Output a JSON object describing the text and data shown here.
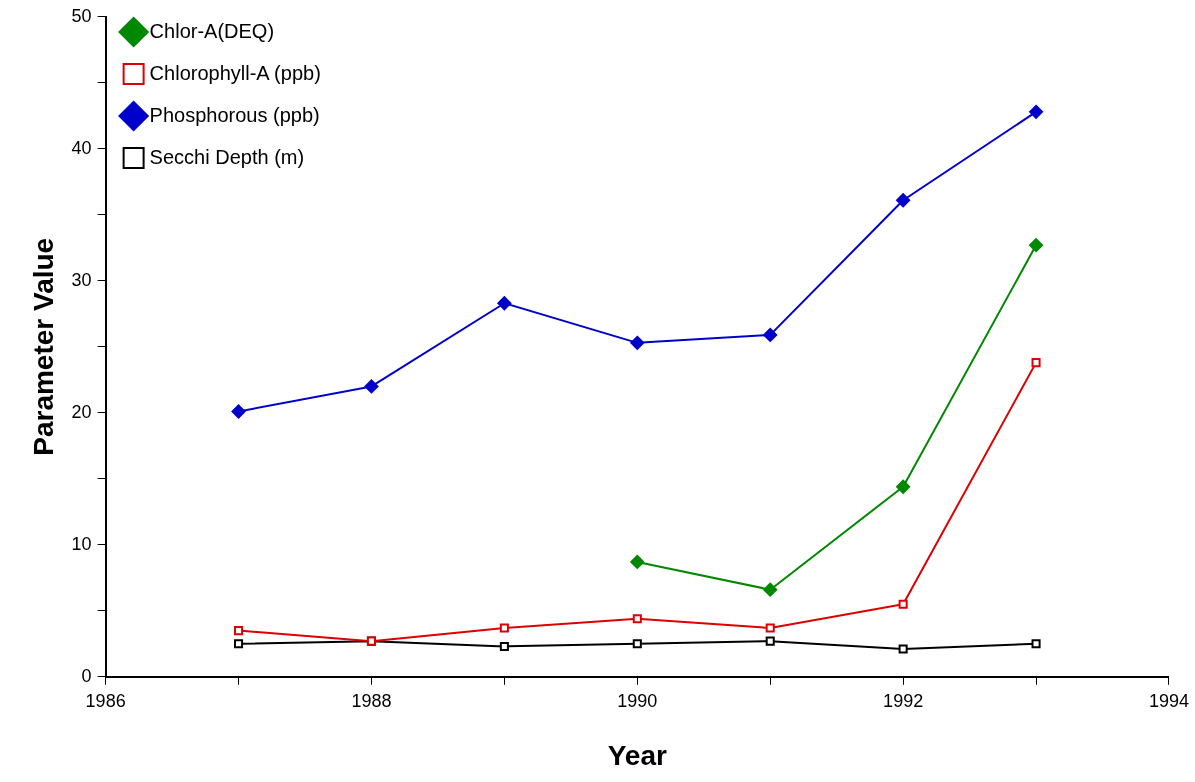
{
  "chart_data": {
    "type": "line",
    "xlabel": "Year",
    "ylabel": "Parameter Value",
    "x": [
      1987,
      1988,
      1989,
      1990,
      1991,
      1992,
      1993
    ],
    "xlim": [
      1986,
      1994
    ],
    "xticks": [
      1986,
      {
        "value": 1987,
        "label": null
      },
      1988,
      {
        "value": 1989,
        "label": null
      },
      1990,
      {
        "value": 1991,
        "label": null
      },
      1992,
      {
        "value": 1993,
        "label": null
      },
      1994
    ],
    "ylim": [
      0,
      50
    ],
    "yticks": [
      0,
      {
        "value": 5,
        "label": null
      },
      10,
      {
        "value": 15,
        "label": null
      },
      20,
      {
        "value": 25,
        "label": null
      },
      30,
      {
        "value": 35,
        "label": null
      },
      40,
      {
        "value": 45,
        "label": null
      },
      50
    ],
    "grid": false,
    "legend": "top left",
    "line_style": "solid",
    "series": [
      {
        "name": "Secchi Depth (m)",
        "color": "#000000",
        "marker": "square",
        "values": [
          2.5,
          2.7,
          2.3,
          2.5,
          2.7,
          2.1,
          2.5
        ]
      },
      {
        "name": "Phosphorous (ppb)",
        "color": "#0000cc",
        "marker": "diamond",
        "values": [
          20.1,
          22.0,
          28.3,
          25.3,
          25.9,
          36.1,
          42.8
        ]
      },
      {
        "name": "Chlorophyll-A (ppb)",
        "color": "#dd0000",
        "marker": "square",
        "values": [
          3.5,
          2.7,
          3.7,
          4.4,
          3.7,
          5.5,
          23.8
        ]
      },
      {
        "name": "Chlor-A(DEQ)",
        "color": "#008800",
        "marker": "diamond",
        "values": [
          null,
          null,
          null,
          8.7,
          6.6,
          14.4,
          32.7
        ]
      }
    ]
  }
}
